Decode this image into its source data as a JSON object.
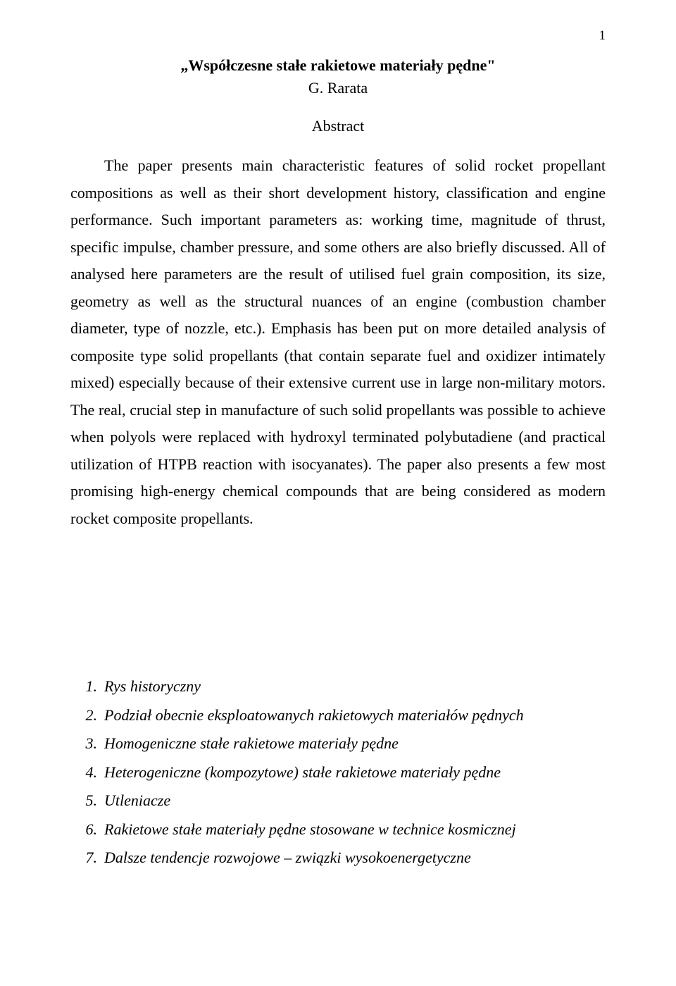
{
  "page_number": "1",
  "title": "„Współczesne stałe rakietowe materiały pędne\"",
  "author": "G. Rarata",
  "abstract_heading": "Abstract",
  "abstract_body": "The paper presents main characteristic features of solid rocket propellant compositions as well as their short development history, classification and engine performance. Such important parameters as: working time, magnitude of thrust, specific impulse, chamber pressure, and some others are also briefly discussed. All of analysed here parameters are the result of utilised fuel grain composition, its size, geometry as well as the structural nuances of an engine (combustion chamber diameter, type of nozzle, etc.). Emphasis has been put on more detailed analysis of composite type solid propellants (that contain separate fuel and oxidizer intimately mixed) especially because of their extensive current use in large non-military motors. The real, crucial step in manufacture of such solid propellants was possible to achieve when polyols were replaced with hydroxyl terminated polybutadiene (and practical utilization of HTPB reaction with isocyanates). The paper also presents a few most promising high-energy chemical compounds that are being considered as modern rocket composite propellants.",
  "toc": [
    {
      "num": "1.",
      "label": "Rys historyczny"
    },
    {
      "num": "2.",
      "label": "Podział obecnie eksploatowanych rakietowych materiałów pędnych"
    },
    {
      "num": "3.",
      "label": "Homogeniczne stałe rakietowe materiały pędne"
    },
    {
      "num": "4.",
      "label": "Heterogeniczne (kompozytowe) stałe rakietowe materiały pędne"
    },
    {
      "num": "5.",
      "label": "Utleniacze"
    },
    {
      "num": "6.",
      "label": "Rakietowe stałe materiały pędne stosowane w technice kosmicznej"
    },
    {
      "num": "7.",
      "label": "Dalsze tendencje rozwojowe – związki wysokoenergetyczne"
    }
  ]
}
